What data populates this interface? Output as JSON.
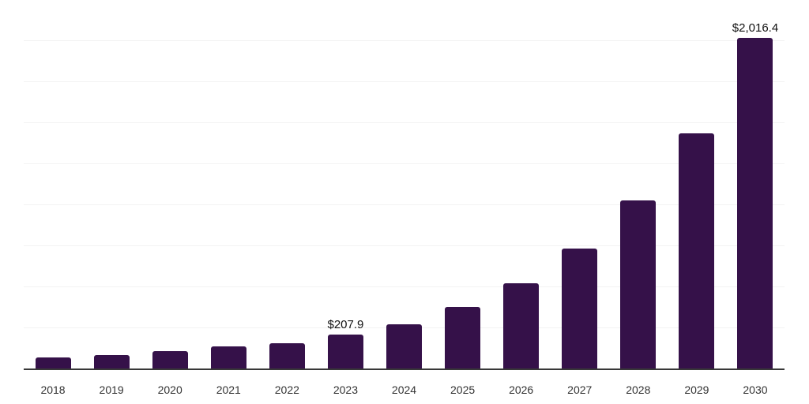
{
  "chart_data": {
    "type": "bar",
    "title": "",
    "xlabel": "",
    "ylabel": "",
    "categories": [
      "2018",
      "2019",
      "2020",
      "2021",
      "2022",
      "2023",
      "2024",
      "2025",
      "2026",
      "2027",
      "2028",
      "2029",
      "2030"
    ],
    "values": [
      67,
      83,
      107,
      135,
      155,
      207.9,
      269,
      374,
      519,
      731,
      1024,
      1433,
      2016.4
    ],
    "data_labels": [
      "",
      "",
      "",
      "",
      "",
      "$207.9",
      "",
      "",
      "",
      "",
      "",
      "",
      "$2,016.4"
    ],
    "ylim": [
      0,
      2250
    ],
    "ytick_interval": 250,
    "grid": "horizontal",
    "y_axis_ticks_shown": false,
    "legend": "none"
  },
  "colors": {
    "background": "#ffffff",
    "bar": "#351149",
    "gridline": "#f3f3f3",
    "axis_line": "#383838",
    "tick_label": "#333333",
    "data_label": "#101010"
  }
}
